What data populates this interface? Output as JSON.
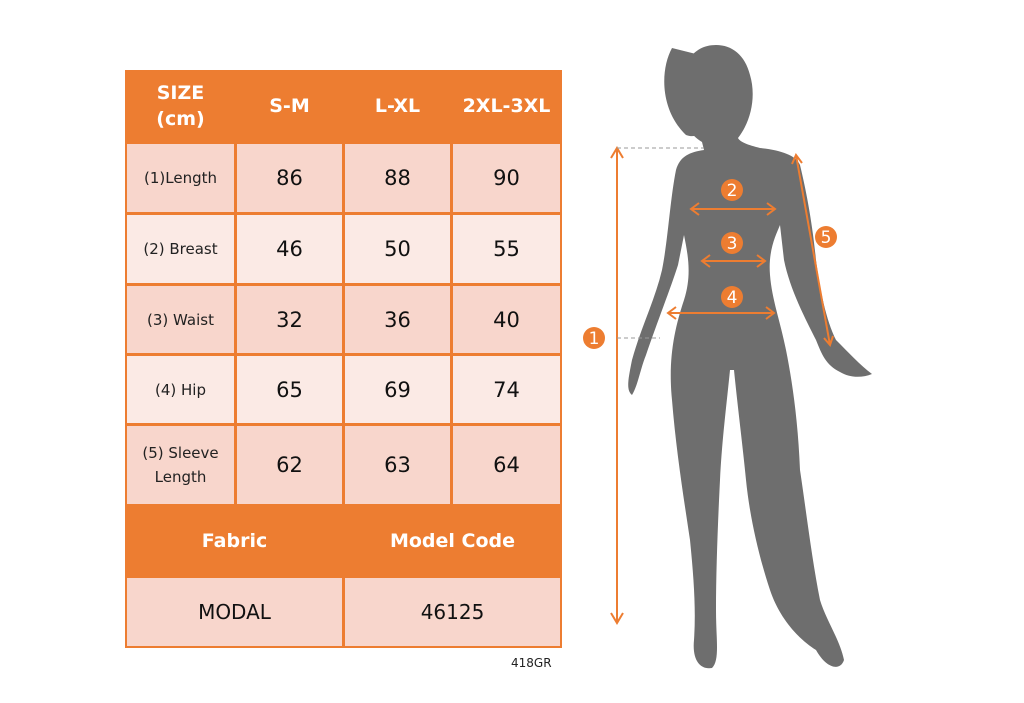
{
  "table": {
    "header": {
      "size": "SIZE\n(cm)",
      "size_line1": "SIZE",
      "size_line2": "(cm)",
      "columns": [
        "S-M",
        "L-XL",
        "2XL-3XL"
      ]
    },
    "rows": [
      {
        "label": "(1)Length",
        "values": [
          "86",
          "88",
          "90"
        ]
      },
      {
        "label": "(2) Breast",
        "values": [
          "46",
          "50",
          "55"
        ]
      },
      {
        "label": "(3) Waist",
        "values": [
          "32",
          "36",
          "40"
        ]
      },
      {
        "label": "(4) Hip",
        "values": [
          "65",
          "69",
          "74"
        ]
      },
      {
        "label": "(5) Sleeve Length",
        "label_line1": "(5) Sleeve",
        "label_line2": "Length",
        "values": [
          "62",
          "63",
          "64"
        ]
      }
    ],
    "footer": {
      "fabric_label": "Fabric",
      "model_code_label": "Model Code",
      "fabric": "MODAL",
      "model_code": "46125"
    }
  },
  "product_code": "418GR",
  "figure": {
    "markers": [
      "1",
      "2",
      "3",
      "4",
      "5"
    ]
  },
  "colors": {
    "accent": "#ed7d31",
    "row_dark": "#f8d6cc",
    "row_light": "#fbeae5",
    "silhouette": "#6e6e6e"
  }
}
